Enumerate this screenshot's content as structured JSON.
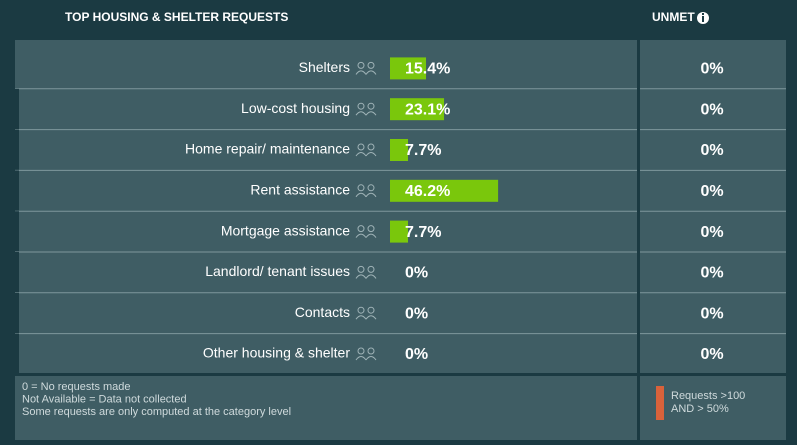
{
  "chart_data": {
    "type": "bar",
    "orientation": "horizontal",
    "title": "TOP HOUSING & SHELTER REQUESTS",
    "unmet_title": "UNMET",
    "categories": [
      "Shelters",
      "Low-cost housing",
      "Home repair/ maintenance",
      "Rent assistance",
      "Mortgage assistance",
      "Landlord/ tenant issues",
      "Contacts",
      "Other housing & shelter"
    ],
    "values": [
      15.4,
      23.1,
      7.7,
      46.2,
      7.7,
      0,
      0,
      0
    ],
    "value_labels": [
      "15.4%",
      "23.1%",
      "7.7%",
      "46.2%",
      "7.7%",
      "0%",
      "0%",
      "0%"
    ],
    "color": "#7ac70c",
    "unmet": [
      "0%",
      "0%",
      "0%",
      "0%",
      "0%",
      "0%",
      "0%",
      "0%"
    ],
    "notes": [
      "0 = No requests made",
      "Not Available = Data not collected",
      "Some requests are only computed at the category level"
    ],
    "legend": [
      "Requests >100",
      "AND > 50%"
    ],
    "legend_color": "#d9623b"
  }
}
